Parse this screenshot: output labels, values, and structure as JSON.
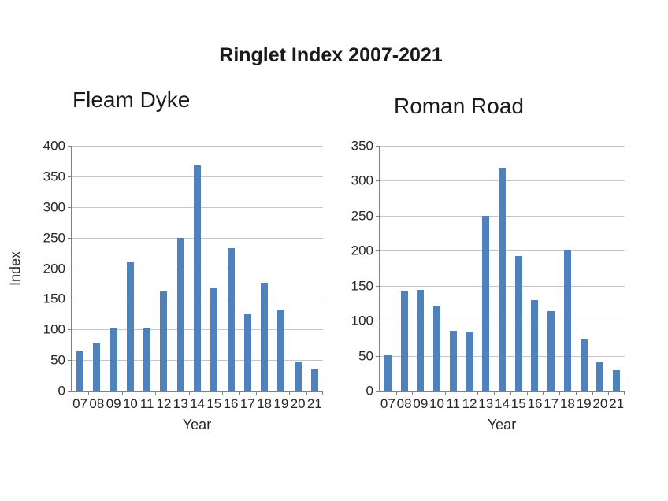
{
  "title": "Ringlet Index 2007-2021",
  "colors": {
    "bar": "#4F81BD",
    "gridline": "#C6C6C6",
    "axis": "#808080",
    "text": "#262626"
  },
  "chart_data": [
    {
      "type": "bar",
      "title": "Fleam Dyke",
      "xlabel": "Year",
      "ylabel": "Index",
      "categories": [
        "07",
        "08",
        "09",
        "10",
        "11",
        "12",
        "13",
        "14",
        "15",
        "16",
        "17",
        "18",
        "19",
        "20",
        "21"
      ],
      "values": [
        65,
        77,
        102,
        210,
        102,
        162,
        250,
        368,
        168,
        233,
        125,
        176,
        131,
        47,
        35
      ],
      "ylim": [
        0,
        400
      ],
      "ytick_step": 50,
      "grid": true,
      "legend": "none"
    },
    {
      "type": "bar",
      "title": "Roman Road",
      "xlabel": "Year",
      "ylabel": "",
      "categories": [
        "07",
        "08",
        "09",
        "10",
        "11",
        "12",
        "13",
        "14",
        "15",
        "16",
        "17",
        "18",
        "19",
        "20",
        "21"
      ],
      "values": [
        51,
        143,
        144,
        120,
        86,
        84,
        250,
        318,
        192,
        129,
        114,
        201,
        74,
        41,
        29
      ],
      "ylim": [
        0,
        350
      ],
      "ytick_step": 50,
      "grid": true,
      "legend": "none"
    }
  ]
}
